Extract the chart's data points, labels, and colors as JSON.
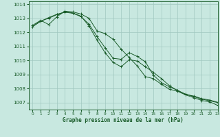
{
  "title": "Graphe pression niveau de la mer (hPa)",
  "bg_color": "#c8e8e0",
  "grid_color": "#a0c8c0",
  "line_color": "#1a5c2a",
  "xlim": [
    -0.5,
    23
  ],
  "ylim": [
    1006.5,
    1014.2
  ],
  "yticks": [
    1007,
    1008,
    1009,
    1010,
    1011,
    1012,
    1013,
    1014
  ],
  "xticks": [
    0,
    1,
    2,
    3,
    4,
    5,
    6,
    7,
    8,
    9,
    10,
    11,
    12,
    13,
    14,
    15,
    16,
    17,
    18,
    19,
    20,
    21,
    22,
    23
  ],
  "series": [
    [
      1012.5,
      1012.85,
      1012.55,
      1013.1,
      1013.5,
      1013.45,
      1013.3,
      1013.0,
      1012.1,
      1011.9,
      1011.5,
      1010.8,
      1010.2,
      1009.6,
      1008.85,
      1008.7,
      1008.3,
      1007.95,
      1007.8,
      1007.55,
      1007.35,
      1007.15,
      1007.05,
      1006.8
    ],
    [
      1012.4,
      1012.8,
      1013.0,
      1013.25,
      1013.45,
      1013.38,
      1013.15,
      1012.45,
      1011.45,
      1010.55,
      1009.85,
      1009.55,
      1010.05,
      1009.95,
      1009.55,
      1009.15,
      1008.7,
      1008.2,
      1007.85,
      1007.6,
      1007.42,
      1007.25,
      1007.12,
      1007.0
    ],
    [
      1012.42,
      1012.78,
      1013.05,
      1013.28,
      1013.43,
      1013.35,
      1013.12,
      1012.58,
      1011.7,
      1010.9,
      1010.15,
      1010.08,
      1010.55,
      1010.28,
      1009.9,
      1008.95,
      1008.42,
      1008.12,
      1007.88,
      1007.58,
      1007.47,
      1007.28,
      1007.18,
      1007.02
    ]
  ]
}
